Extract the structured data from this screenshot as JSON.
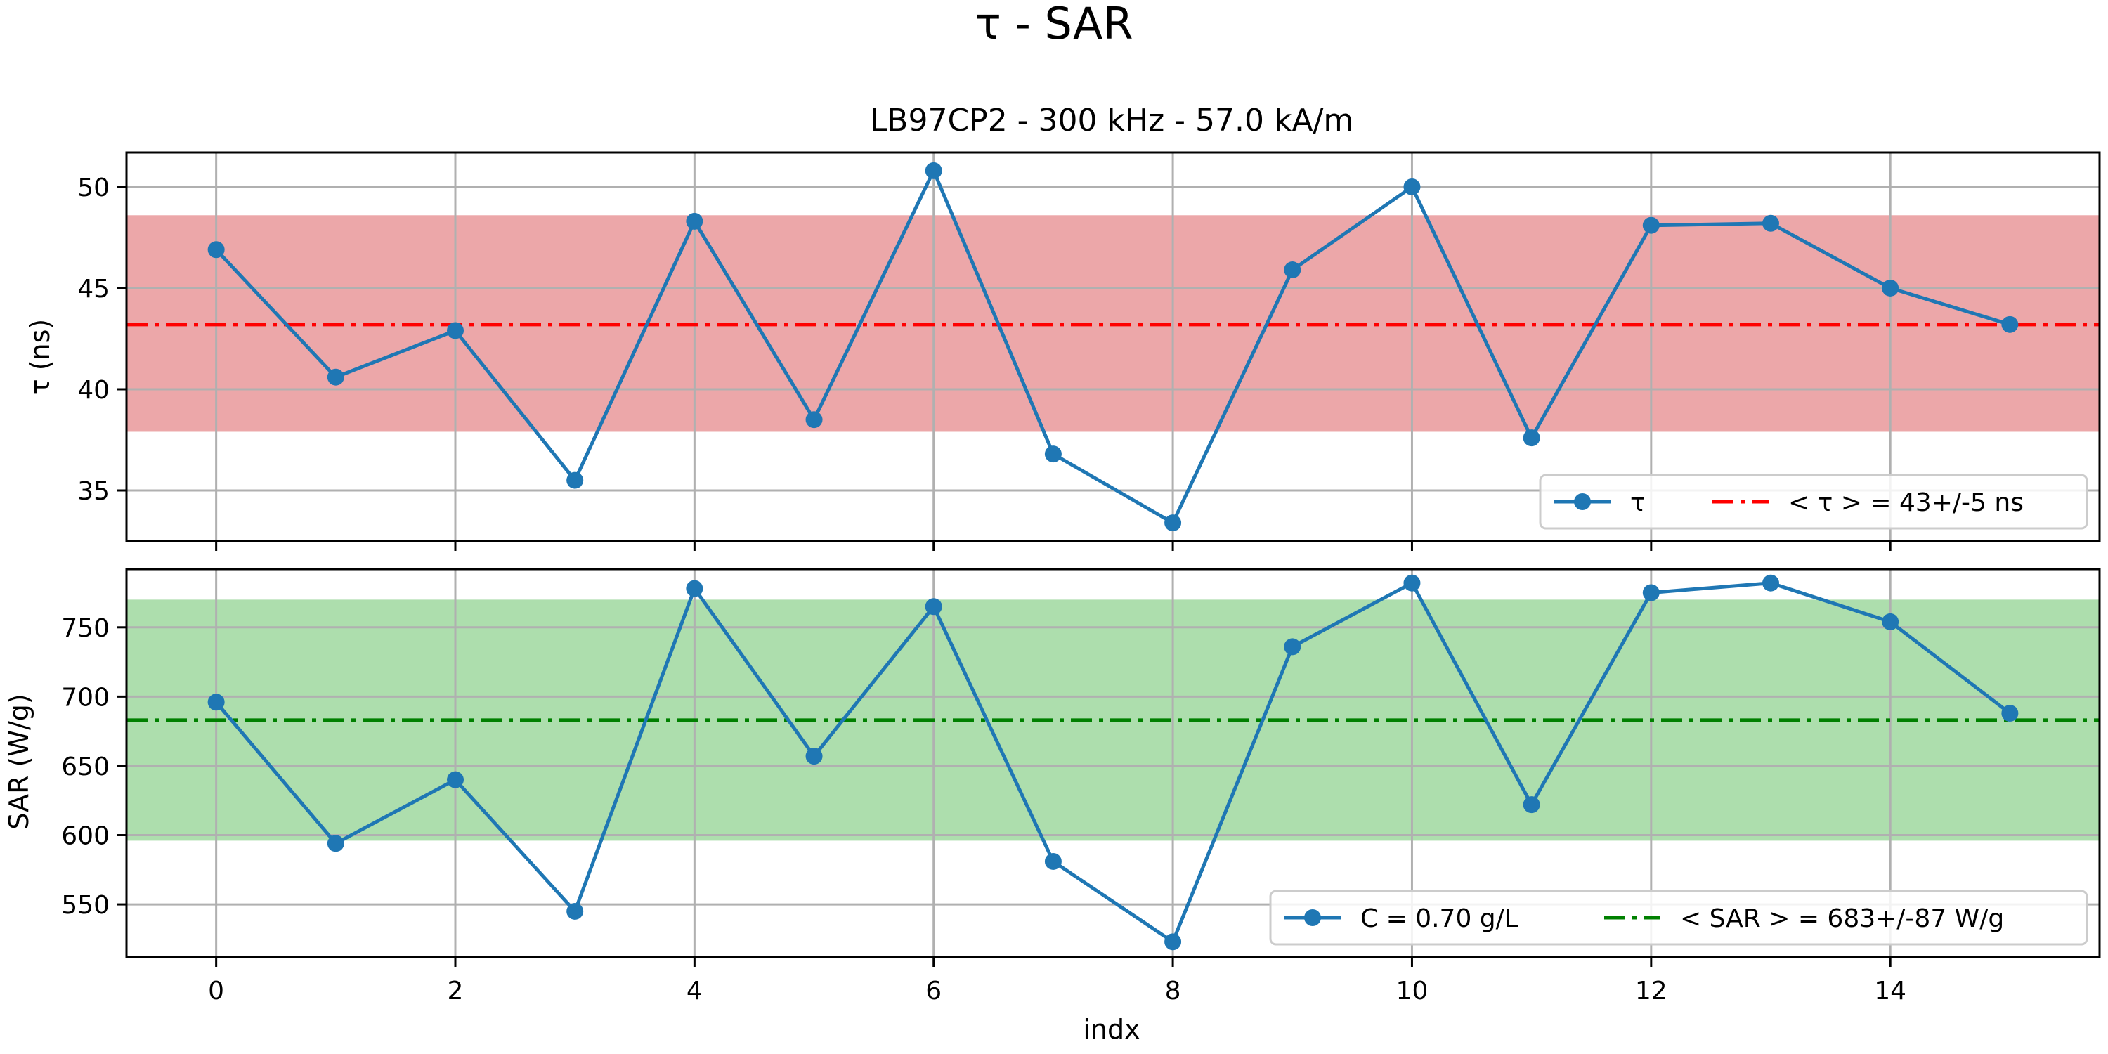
{
  "figure": {
    "suptitle": "τ - SAR",
    "subplot_title": "LB97CP2 - 300 kHz - 57.0 kA/m",
    "xlabel": "indx"
  },
  "colors": {
    "series": "#1f77b4",
    "tau_mean": "#ff0000",
    "tau_band": "#e06c70",
    "sar_mean": "#008000",
    "sar_band": "#5cbd5c",
    "grid": "#b0b0b0"
  },
  "chart_data": [
    {
      "type": "line",
      "title": "LB97CP2 - 300 kHz - 57.0 kA/m",
      "xlabel": "",
      "ylabel": "τ (ns)",
      "x": [
        0,
        1,
        2,
        3,
        4,
        5,
        6,
        7,
        8,
        9,
        10,
        11,
        12,
        13,
        14,
        15
      ],
      "series": [
        {
          "name": "τ",
          "values": [
            46.9,
            40.6,
            42.9,
            35.5,
            48.3,
            38.5,
            50.8,
            36.8,
            33.4,
            45.9,
            50.0,
            37.6,
            48.1,
            48.2,
            45.0,
            43.2
          ]
        }
      ],
      "mean": {
        "label": "< τ >  = 43+/-5 ns",
        "value": 43.2,
        "band": [
          37.9,
          48.6
        ]
      },
      "xlim": [
        -0.75,
        15.75
      ],
      "ylim": [
        32.5,
        51.7
      ],
      "xticks": [
        0,
        2,
        4,
        6,
        8,
        10,
        12,
        14
      ],
      "yticks": [
        35,
        40,
        45,
        50
      ],
      "grid": true,
      "legend": "lower-right"
    },
    {
      "type": "line",
      "title": "",
      "xlabel": "indx",
      "ylabel": "SAR (W/g)",
      "x": [
        0,
        1,
        2,
        3,
        4,
        5,
        6,
        7,
        8,
        9,
        10,
        11,
        12,
        13,
        14,
        15
      ],
      "series": [
        {
          "name": "C = 0.70 g/L",
          "values": [
            696,
            594,
            640,
            545,
            778,
            657,
            765,
            581,
            523,
            736,
            782,
            622,
            775,
            782,
            754,
            688
          ]
        }
      ],
      "mean": {
        "label": "< SAR >  = 683+/-87 W/g",
        "value": 683,
        "band": [
          596,
          770
        ]
      },
      "xlim": [
        -0.75,
        15.75
      ],
      "ylim": [
        512,
        792
      ],
      "xticks": [
        0,
        2,
        4,
        6,
        8,
        10,
        12,
        14
      ],
      "yticks": [
        550,
        600,
        650,
        700,
        750
      ],
      "grid": true,
      "legend": "lower-right"
    }
  ]
}
